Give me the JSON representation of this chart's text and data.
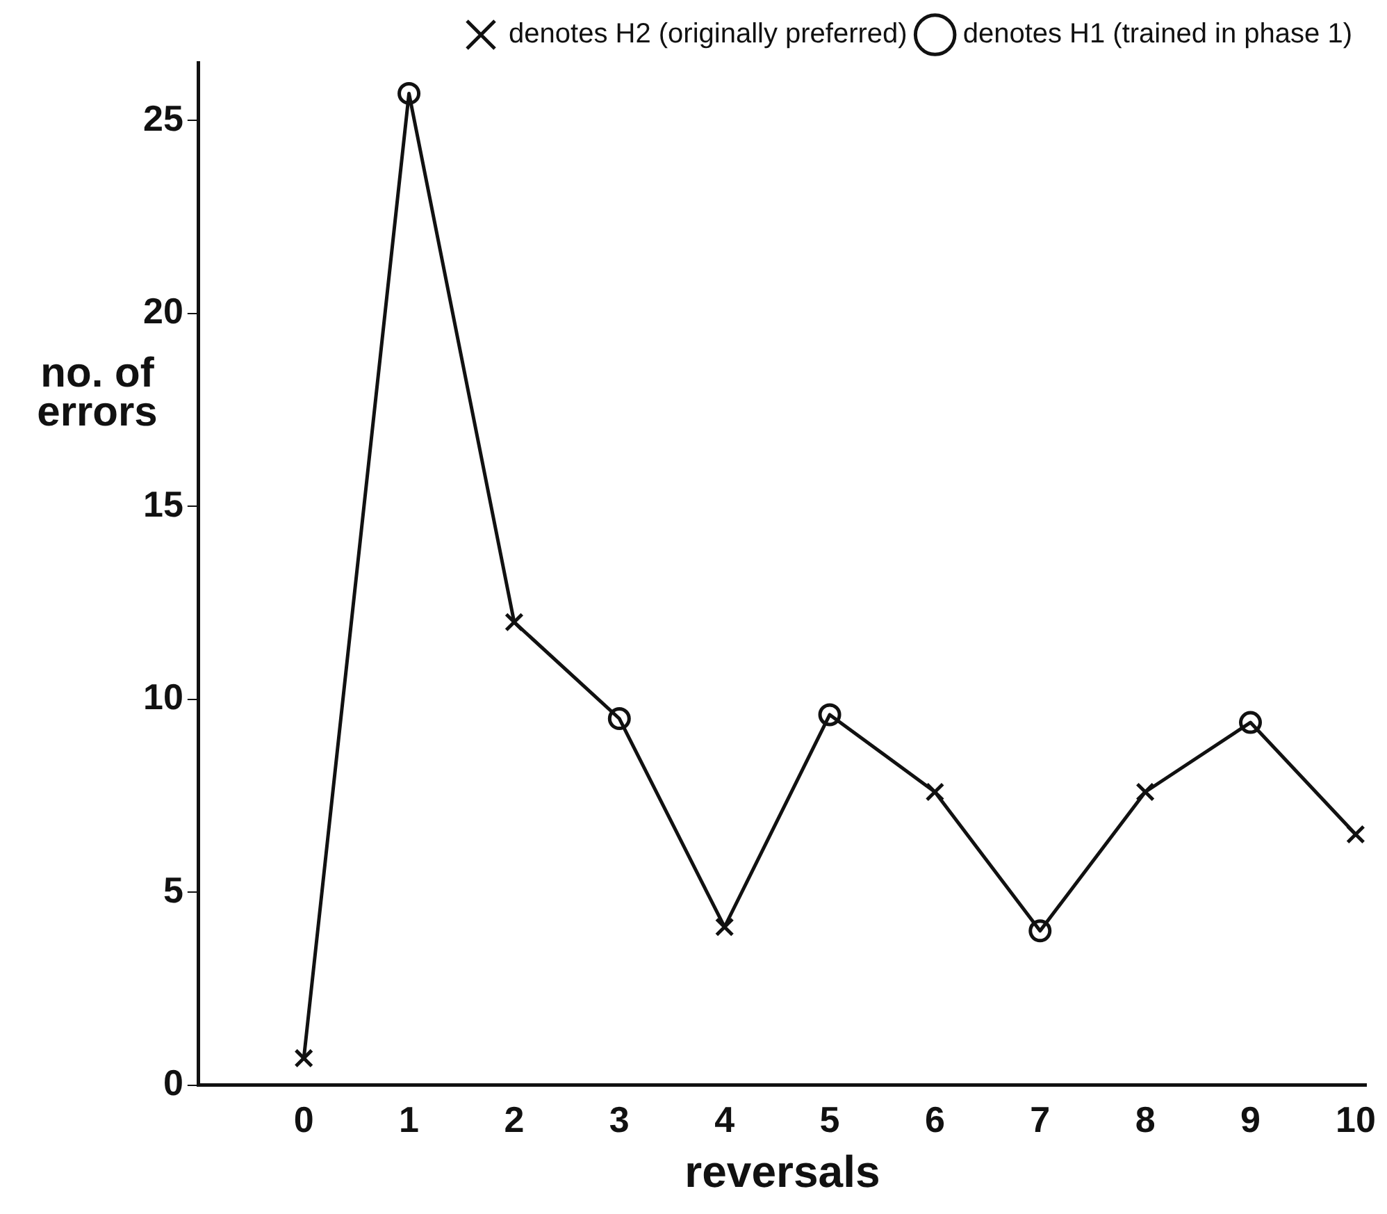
{
  "chart_data": {
    "type": "line",
    "xlabel": "reversals",
    "ylabel": "no. of errors",
    "x": [
      0,
      1,
      2,
      3,
      4,
      5,
      6,
      7,
      8,
      9,
      10
    ],
    "xlim": [
      -1,
      10.1
    ],
    "xticks": [
      0,
      1,
      2,
      3,
      4,
      5,
      6,
      7,
      8,
      9,
      10
    ],
    "ylim": [
      0,
      26.5
    ],
    "yticks": [
      0,
      5,
      10,
      15,
      20,
      25
    ],
    "grid": false,
    "legend": "top right",
    "series": [
      {
        "color": "#111111",
        "marker": "none",
        "line_style": "solid",
        "values": [
          0.7,
          25.7,
          12.0,
          9.5,
          4.1,
          9.6,
          7.6,
          4.0,
          7.6,
          9.4,
          6.5
        ]
      },
      {
        "type": "scatter",
        "name": "denotes H2 (originally preferred)",
        "color": "#111111",
        "marker": "cross",
        "values": [
          0.7,
          null,
          12.0,
          null,
          4.1,
          null,
          7.6,
          null,
          7.6,
          null,
          6.5
        ]
      },
      {
        "type": "scatter",
        "name": "denotes H1 (trained in phase 1)",
        "color": "#111111",
        "marker": "circle",
        "values": [
          null,
          25.7,
          null,
          9.5,
          null,
          9.6,
          null,
          4.0,
          null,
          9.4,
          null
        ]
      }
    ]
  }
}
